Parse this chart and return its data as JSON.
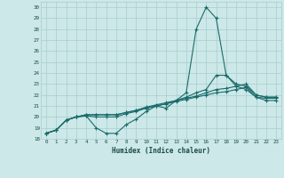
{
  "title": "",
  "xlabel": "Humidex (Indice chaleur)",
  "xlim": [
    -0.5,
    23.5
  ],
  "ylim": [
    18,
    30.5
  ],
  "yticks": [
    18,
    19,
    20,
    21,
    22,
    23,
    24,
    25,
    26,
    27,
    28,
    29,
    30
  ],
  "xticks": [
    0,
    1,
    2,
    3,
    4,
    5,
    6,
    7,
    8,
    9,
    10,
    11,
    12,
    13,
    14,
    15,
    16,
    17,
    18,
    19,
    20,
    21,
    22,
    23
  ],
  "bg_color": "#cce8e8",
  "grid_color": "#aacccc",
  "line_color": "#1a6b6b",
  "line1": [
    18.5,
    18.8,
    19.7,
    20.0,
    20.1,
    19.0,
    18.5,
    18.5,
    19.3,
    19.8,
    20.5,
    21.0,
    20.8,
    21.5,
    22.2,
    28.0,
    30.0,
    29.0,
    23.8,
    22.8,
    22.5,
    21.8,
    21.5,
    21.5
  ],
  "line2": [
    18.5,
    18.8,
    19.7,
    20.0,
    20.1,
    20.0,
    20.0,
    20.0,
    20.3,
    20.5,
    20.8,
    21.0,
    21.2,
    21.5,
    21.8,
    22.2,
    22.5,
    23.8,
    23.8,
    23.0,
    22.8,
    22.0,
    21.8,
    21.8
  ],
  "line3": [
    18.5,
    18.8,
    19.7,
    20.0,
    20.2,
    20.2,
    20.2,
    20.2,
    20.4,
    20.6,
    20.9,
    21.1,
    21.3,
    21.5,
    21.7,
    21.9,
    22.2,
    22.5,
    22.6,
    22.8,
    23.0,
    22.0,
    21.8,
    21.8
  ],
  "line4": [
    18.5,
    18.8,
    19.7,
    20.0,
    20.2,
    20.2,
    20.2,
    20.2,
    20.4,
    20.6,
    20.8,
    21.0,
    21.2,
    21.4,
    21.6,
    21.8,
    22.0,
    22.2,
    22.3,
    22.5,
    22.7,
    21.8,
    21.7,
    21.7
  ]
}
